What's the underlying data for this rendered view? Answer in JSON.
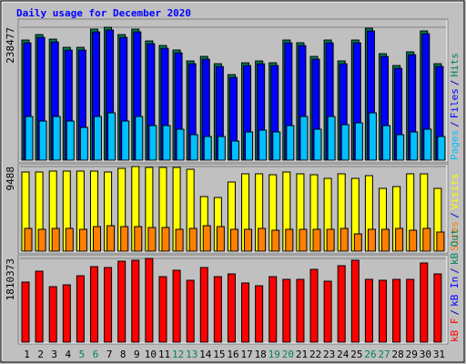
{
  "title": "Daily usage for December 2020",
  "categories": [
    "1",
    "2",
    "3",
    "4",
    "5",
    "6",
    "7",
    "8",
    "9",
    "10",
    "11",
    "12",
    "13",
    "14",
    "15",
    "16",
    "17",
    "18",
    "19",
    "20",
    "21",
    "22",
    "23",
    "24",
    "25",
    "26",
    "27",
    "28",
    "29",
    "30",
    "31"
  ],
  "category_colors": [
    "#000000",
    "#000000",
    "#000000",
    "#000000",
    "#00805c",
    "#00805c",
    "#000000",
    "#000000",
    "#000000",
    "#000000",
    "#000000",
    "#00805c",
    "#00805c",
    "#000000",
    "#000000",
    "#000000",
    "#000000",
    "#000000",
    "#00805c",
    "#00805c",
    "#000000",
    "#000000",
    "#000000",
    "#000000",
    "#000000",
    "#00805c",
    "#00805c",
    "#000000",
    "#000000",
    "#000000",
    "#000000"
  ],
  "legend_separator": "/",
  "chart_data": [
    {
      "type": "bar",
      "ylim": [
        0,
        238477
      ],
      "yticks": [
        238477
      ],
      "series": [
        {
          "name": "Hits",
          "color": "#00805c",
          "values": [
            215556,
            225354,
            217189,
            202492,
            202492,
            235152,
            238477,
            225354,
            235152,
            213923,
            205758,
            197593,
            177997,
            186162,
            173098,
            153502,
            174731,
            177997,
            174731,
            215556,
            210657,
            186162,
            215556,
            177997,
            215556,
            236785,
            191061,
            169832,
            194327,
            231886,
            173098
          ]
        },
        {
          "name": "Files",
          "color": "#0000ff",
          "values": [
            210556,
            220354,
            212189,
            197492,
            197492,
            230152,
            233477,
            220354,
            230152,
            208923,
            200758,
            192593,
            172997,
            181162,
            168098,
            148502,
            169731,
            172997,
            169731,
            210556,
            205657,
            181162,
            210556,
            172997,
            210556,
            231785,
            186061,
            164832,
            189327,
            226886,
            168098
          ]
        },
        {
          "name": "Pages",
          "color": "#00c0ff",
          "values": [
            78384,
            70219,
            78384,
            70219,
            58788,
            78384,
            84916,
            70219,
            78384,
            62054,
            62054,
            55522,
            45724,
            42458,
            42458,
            34293,
            50623,
            53889,
            50623,
            62054,
            78384,
            55522,
            78384,
            63687,
            66953,
            84916,
            62054,
            45724,
            50623,
            55522,
            42458
          ]
        }
      ]
    },
    {
      "type": "bar",
      "ylim": [
        0,
        9488
      ],
      "yticks": [
        9488
      ],
      "series": [
        {
          "name": "Visits",
          "color": "#ffff00",
          "values": [
            8874,
            8874,
            8976,
            8976,
            8976,
            8976,
            8874,
            9282,
            9488,
            9386,
            9386,
            9386,
            9180,
            6120,
            6018,
            7752,
            8670,
            8670,
            8568,
            8874,
            8670,
            8568,
            8160,
            8670,
            8160,
            8466,
            7038,
            7242,
            8670,
            8670,
            7038
          ]
        },
        {
          "name": "Sites",
          "color": "#ff8000",
          "values": [
            2550,
            2448,
            2550,
            2550,
            2448,
            2754,
            2856,
            2754,
            2754,
            2652,
            2652,
            2448,
            2550,
            2856,
            2754,
            2448,
            2448,
            2550,
            2346,
            2448,
            2448,
            2448,
            2448,
            2550,
            1938,
            2448,
            2448,
            2550,
            2346,
            2550,
            2142
          ]
        }
      ]
    },
    {
      "type": "bar",
      "ylim": [
        0,
        1810373
      ],
      "yticks": [
        1810373
      ],
      "series": [
        {
          "name": "kB F",
          "color": "#ff0000",
          "values": [
            1298748,
            1534884,
            1200358,
            1239714,
            1436494,
            1633274,
            1613596,
            1751342,
            1771020,
            1810373,
            1416816,
            1554562,
            1338104,
            1613596,
            1416816,
            1475850,
            1279070,
            1220036,
            1416816,
            1357782,
            1357782,
            1574240,
            1318426,
            1652952,
            1771020,
            1357782,
            1338104,
            1357782,
            1357782,
            1711986,
            1475850
          ]
        }
      ],
      "other_legend": [
        {
          "name": "kB In",
          "color": "#0000ff"
        },
        {
          "name": "kB Out",
          "color": "#00805c"
        }
      ]
    }
  ]
}
